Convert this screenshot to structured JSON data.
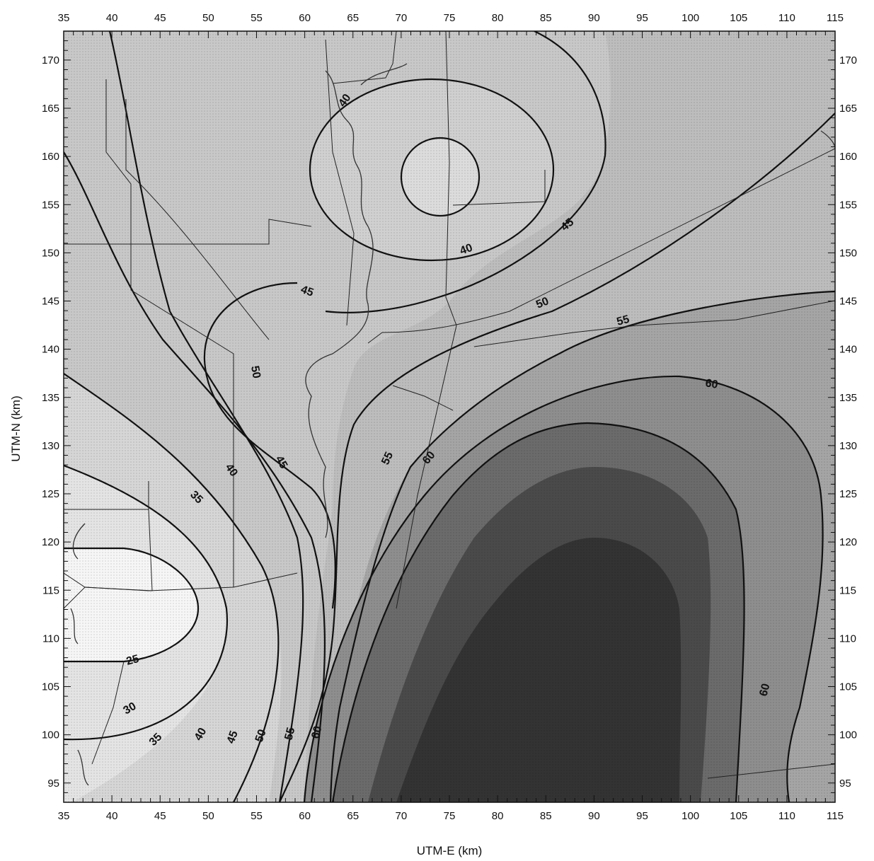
{
  "axes": {
    "x_title": "UTM-E (km)",
    "y_title": "UTM-N (km)",
    "x_ticks": [
      "35",
      "40",
      "45",
      "50",
      "55",
      "60",
      "65",
      "70",
      "75",
      "80",
      "85",
      "90",
      "95",
      "100",
      "105",
      "110",
      "115"
    ],
    "y_ticks": [
      "95",
      "100",
      "105",
      "110",
      "115",
      "120",
      "125",
      "130",
      "135",
      "140",
      "145",
      "150",
      "155",
      "160",
      "165",
      "170"
    ],
    "x_range": [
      35,
      115
    ],
    "y_range": [
      93,
      173
    ]
  },
  "contour_levels": {
    "c25": "25",
    "c30": "30",
    "c35a": "35",
    "c35b": "35",
    "c40a": "40",
    "c40b": "40",
    "c40c": "40",
    "c40d": "40",
    "c45a": "45",
    "c45b": "45",
    "c45c": "45",
    "c45d": "45",
    "c50a": "50",
    "c50b": "50",
    "c50c": "50",
    "c55a": "55",
    "c55b": "55",
    "c55c": "55",
    "c60a": "60",
    "c60b": "60",
    "c60c": "60",
    "c60d": "60"
  },
  "colors": {
    "low": "#f1f1f1",
    "mid": "#b4b4b4",
    "high": "#3a3a3a"
  }
}
